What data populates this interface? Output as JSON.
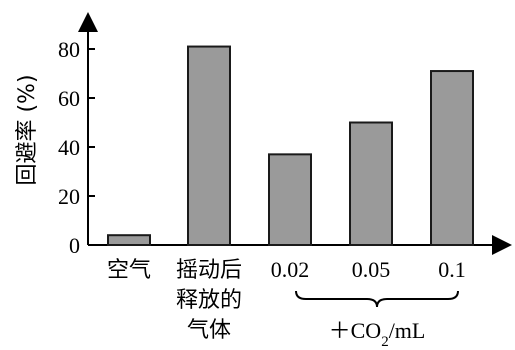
{
  "chart_data": {
    "type": "bar",
    "ylabel": "回避率 (%)",
    "ylim": [
      0,
      90
    ],
    "yticks": [
      0,
      20,
      40,
      60,
      80
    ],
    "grid": false,
    "categories": [
      {
        "lines": [
          "空气"
        ]
      },
      {
        "lines": [
          "摇动后",
          "释放的",
          "气体"
        ]
      },
      {
        "lines": [
          "0.02"
        ]
      },
      {
        "lines": [
          "0.05"
        ]
      },
      {
        "lines": [
          "0.1"
        ]
      }
    ],
    "values": [
      4,
      81,
      37,
      50,
      71
    ],
    "group_annotation": {
      "label_prefix": "＋CO",
      "label_sub": "2",
      "label_suffix": "/mL",
      "spans_categories": [
        2,
        4
      ]
    },
    "colors": {
      "bar_fill": "#9a9a9a",
      "bar_stroke": "#1a1a1a",
      "axis": "#000000"
    }
  }
}
